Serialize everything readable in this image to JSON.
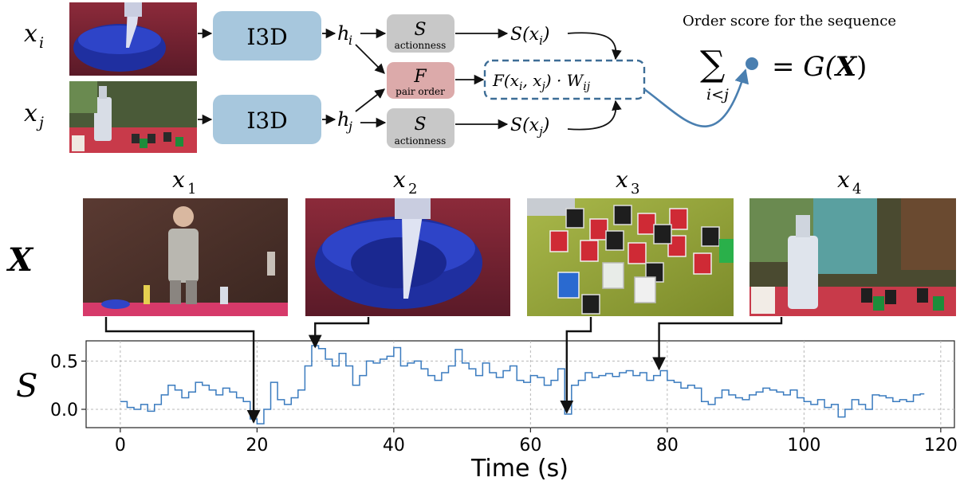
{
  "pipeline": {
    "input_i_label": "x",
    "input_i_sub": "i",
    "input_j_label": "x",
    "input_j_sub": "j",
    "encoder_label": "I3D",
    "feature_i": "h",
    "feature_i_sub": "i",
    "feature_j": "h",
    "feature_j_sub": "j",
    "s_head_label": "S",
    "s_head_caption": "actionness",
    "f_head_label": "F",
    "f_head_caption": "pair order",
    "s_out_i": "S(x",
    "s_out_i_sub": "i",
    "s_out_j": "S(x",
    "s_out_j_sub": "j",
    "pair_formula": "F(x",
    "pair_formula_i": "i",
    "pair_formula_mid": ", x",
    "pair_formula_j": "j",
    "pair_formula_end": ") · W",
    "pair_formula_w": "ij",
    "order_score_title": "Order score for the sequence",
    "sum_symbol": "∑",
    "sum_index": "i<j",
    "result": "= G(",
    "result_x": "X",
    "result_end": ")",
    "colors": {
      "encoder_fill": "#a7c7dd",
      "s_head_fill": "#c8c8c8",
      "f_head_fill": "#dcaaaa",
      "dashed_box": "#3d6d96",
      "connector": "#4a7fb0",
      "dot": "#4a7fb0"
    }
  },
  "sequence": {
    "set_label": "X",
    "frames": [
      {
        "label": "x",
        "sub": "1",
        "icon": "man-standing-photo"
      },
      {
        "label": "x",
        "sub": "2",
        "icon": "pouring-bowl-photo"
      },
      {
        "label": "x",
        "sub": "3",
        "icon": "shot-glasses-photo"
      },
      {
        "label": "x",
        "sub": "4",
        "icon": "vodka-bottle-photo"
      }
    ]
  },
  "chart_data": {
    "type": "line",
    "ylabel": "S",
    "xlabel": "Time (s)",
    "xlim": [
      -5,
      122
    ],
    "ylim": [
      -0.19,
      0.71
    ],
    "xticks": [
      0,
      20,
      40,
      60,
      80,
      100,
      120
    ],
    "yticks": [
      0.0,
      0.5
    ],
    "ytick_labels": [
      "0.0",
      "0.5"
    ],
    "grid": true,
    "line_color": "#3a7bbf",
    "frame_times": [
      19.5,
      28.5,
      65.3,
      78.8
    ],
    "x": [
      0,
      1,
      2,
      3,
      4,
      5,
      6,
      7,
      8,
      9,
      10,
      11,
      12,
      13,
      14,
      15,
      16,
      17,
      18,
      19,
      20,
      21,
      22,
      23,
      24,
      25,
      26,
      27,
      28,
      29,
      30,
      31,
      32,
      33,
      34,
      35,
      36,
      37,
      38,
      39,
      40,
      41,
      42,
      43,
      44,
      45,
      46,
      47,
      48,
      49,
      50,
      51,
      52,
      53,
      54,
      55,
      56,
      57,
      58,
      59,
      60,
      61,
      62,
      63,
      64,
      65,
      66,
      67,
      68,
      69,
      70,
      71,
      72,
      73,
      74,
      75,
      76,
      77,
      78,
      79,
      80,
      81,
      82,
      83,
      84,
      85,
      86,
      87,
      88,
      89,
      90,
      91,
      92,
      93,
      94,
      95,
      96,
      97,
      98,
      99,
      100,
      101,
      102,
      103,
      104,
      105,
      106,
      107,
      108,
      109,
      110,
      111,
      112,
      113,
      114,
      115,
      116,
      117
    ],
    "y": [
      0.08,
      0.02,
      0.0,
      0.05,
      -0.02,
      0.05,
      0.15,
      0.25,
      0.2,
      0.12,
      0.18,
      0.28,
      0.25,
      0.2,
      0.15,
      0.22,
      0.18,
      0.12,
      0.08,
      -0.1,
      -0.15,
      0.0,
      0.28,
      0.1,
      0.05,
      0.12,
      0.2,
      0.45,
      0.66,
      0.63,
      0.52,
      0.45,
      0.58,
      0.45,
      0.25,
      0.35,
      0.5,
      0.48,
      0.52,
      0.55,
      0.64,
      0.45,
      0.48,
      0.5,
      0.42,
      0.35,
      0.3,
      0.38,
      0.45,
      0.62,
      0.48,
      0.42,
      0.35,
      0.48,
      0.38,
      0.33,
      0.4,
      0.45,
      0.3,
      0.28,
      0.35,
      0.33,
      0.25,
      0.3,
      0.42,
      -0.05,
      0.25,
      0.3,
      0.38,
      0.33,
      0.35,
      0.37,
      0.34,
      0.38,
      0.4,
      0.35,
      0.38,
      0.3,
      0.35,
      0.4,
      0.3,
      0.28,
      0.22,
      0.25,
      0.22,
      0.08,
      0.05,
      0.12,
      0.2,
      0.15,
      0.12,
      0.1,
      0.15,
      0.18,
      0.22,
      0.2,
      0.18,
      0.15,
      0.2,
      0.12,
      0.08,
      0.05,
      0.1,
      0.02,
      0.05,
      -0.08,
      0.0,
      0.1,
      0.05,
      0.0,
      0.15,
      0.14,
      0.12,
      0.08,
      0.1,
      0.08,
      0.15,
      0.16
    ]
  }
}
